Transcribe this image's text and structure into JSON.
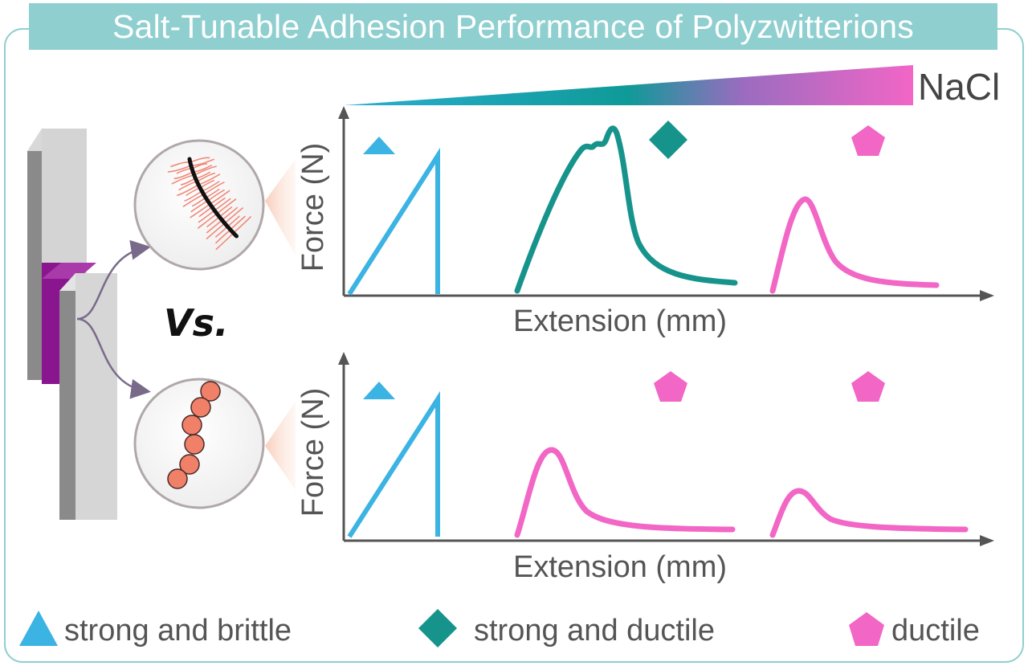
{
  "title": "Salt-Tunable Adhesion Performance of Polyzwitterions",
  "salt_label": "NaCl",
  "vs_label": "Vs.",
  "colors": {
    "brittle": "#3bb3e3",
    "strong_ductile": "#16948c",
    "ductile": "#f266c6",
    "title_bg": "#8fcfcf",
    "frame": "#8fcfcf",
    "plate": "#c8c8c8",
    "adhesive": "#8a168f"
  },
  "charts": [
    {
      "id": "top",
      "ylabel": "Force (N)",
      "xlabel": "Extension (mm)",
      "markers": [
        "triangle",
        "diamond",
        "pentagon"
      ]
    },
    {
      "id": "bottom",
      "ylabel": "Force (N)",
      "xlabel": "Extension (mm)",
      "markers": [
        "triangle",
        "pentagon",
        "pentagon"
      ]
    }
  ],
  "legend": [
    {
      "shape": "triangle",
      "label": "strong and brittle"
    },
    {
      "shape": "diamond",
      "label": "strong and ductile"
    },
    {
      "shape": "pentagon",
      "label": "ductile"
    }
  ]
}
